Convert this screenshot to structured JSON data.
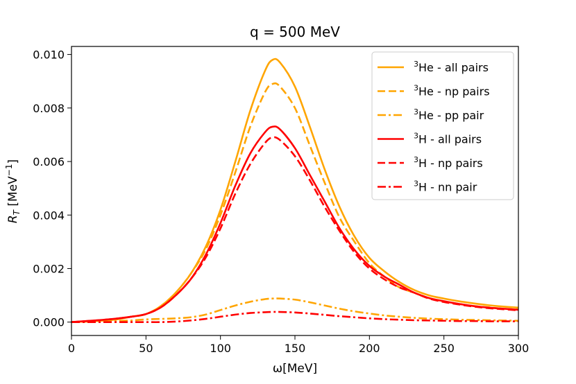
{
  "chart_data": {
    "type": "line",
    "title": "q = 500 MeV",
    "xlabel": "ω[MeV]",
    "ylabel_main": "R",
    "ylabel_sub": "T",
    "ylabel_unit_open": " [MeV",
    "ylabel_unit_exp": "−1",
    "ylabel_unit_close": "]",
    "xlim": [
      0,
      300
    ],
    "ylim": [
      -0.0005,
      0.0103
    ],
    "xticks": [
      0,
      50,
      100,
      150,
      200,
      250,
      300
    ],
    "xtick_labels": [
      "0",
      "50",
      "100",
      "150",
      "200",
      "250",
      "300"
    ],
    "yticks": [
      0,
      0.002,
      0.004,
      0.006,
      0.008,
      0.01
    ],
    "ytick_labels": [
      "0.000",
      "0.002",
      "0.004",
      "0.006",
      "0.008",
      "0.010"
    ],
    "legend_position": "top-right",
    "x": [
      0,
      10,
      20,
      30,
      40,
      50,
      60,
      70,
      80,
      90,
      100,
      110,
      120,
      130,
      135,
      140,
      150,
      160,
      170,
      180,
      190,
      200,
      210,
      220,
      230,
      240,
      250,
      260,
      270,
      280,
      290,
      300
    ],
    "series": [
      {
        "name_sup": "3",
        "name": "He - all pairs",
        "color": "#FFA500",
        "dash": "solid",
        "values": [
          0,
          2e-05,
          5e-05,
          0.0001,
          0.0002,
          0.0003,
          0.0006,
          0.0011,
          0.0018,
          0.0028,
          0.0042,
          0.006,
          0.0079,
          0.0094,
          0.0098,
          0.0097,
          0.0088,
          0.0073,
          0.0057,
          0.0043,
          0.0032,
          0.0024,
          0.0019,
          0.0015,
          0.0012,
          0.001,
          0.00088,
          0.00078,
          0.0007,
          0.00063,
          0.00058,
          0.00054
        ]
      },
      {
        "name_sup": "3",
        "name": "He - np pairs",
        "color": "#FFA500",
        "dash": "dashed",
        "values": [
          0,
          2e-05,
          5e-05,
          0.0001,
          0.0002,
          0.0003,
          0.0006,
          0.0011,
          0.0018,
          0.0027,
          0.004,
          0.0056,
          0.0073,
          0.0086,
          0.0089,
          0.0088,
          0.008,
          0.0066,
          0.0052,
          0.0039,
          0.003,
          0.0022,
          0.0017,
          0.0013,
          0.0011,
          0.0009,
          0.00078,
          0.00068,
          0.0006,
          0.00055,
          0.0005,
          0.00047
        ]
      },
      {
        "name_sup": "3",
        "name": "He - pp pair",
        "color": "#FFA500",
        "dash": "dashdot",
        "values": [
          0,
          1e-05,
          2e-05,
          4e-05,
          6e-05,
          0.0001,
          0.00012,
          0.00014,
          0.00018,
          0.00028,
          0.00045,
          0.00062,
          0.00076,
          0.00086,
          0.00088,
          0.00088,
          0.00084,
          0.00074,
          0.00062,
          0.0005,
          0.0004,
          0.00032,
          0.00025,
          0.0002,
          0.00016,
          0.00013,
          0.00011,
          9e-05,
          8e-05,
          7e-05,
          6e-05,
          5e-05
        ]
      },
      {
        "name_sup": "3",
        "name": "H - all pairs",
        "color": "#FF0000",
        "dash": "solid",
        "values": [
          0,
          4e-05,
          8e-05,
          0.00013,
          0.0002,
          0.0003,
          0.00055,
          0.001,
          0.0016,
          0.0025,
          0.0037,
          0.0051,
          0.0063,
          0.0071,
          0.0073,
          0.0072,
          0.0065,
          0.0055,
          0.0045,
          0.0035,
          0.0027,
          0.0021,
          0.0017,
          0.0014,
          0.0011,
          0.0009,
          0.00078,
          0.00068,
          0.0006,
          0.00054,
          0.0005,
          0.00046
        ]
      },
      {
        "name_sup": "3",
        "name": "H - np pairs",
        "color": "#FF0000",
        "dash": "dashed",
        "values": [
          0,
          4e-05,
          8e-05,
          0.00013,
          0.0002,
          0.0003,
          0.00055,
          0.001,
          0.0016,
          0.0024,
          0.0035,
          0.0048,
          0.0059,
          0.0067,
          0.0069,
          0.0068,
          0.0062,
          0.0053,
          0.0043,
          0.0034,
          0.0026,
          0.002,
          0.0016,
          0.0013,
          0.0011,
          0.00088,
          0.00075,
          0.00066,
          0.00058,
          0.00052,
          0.00048,
          0.00044
        ]
      },
      {
        "name_sup": "3",
        "name": "H - nn pair",
        "color": "#FF0000",
        "dash": "dashdot",
        "values": [
          0,
          0,
          0,
          0,
          0,
          0,
          0,
          2e-05,
          6e-05,
          0.00012,
          0.0002,
          0.00028,
          0.00034,
          0.00037,
          0.00038,
          0.00038,
          0.00036,
          0.00032,
          0.00027,
          0.00022,
          0.00018,
          0.00014,
          0.00011,
          9e-05,
          7e-05,
          6e-05,
          5e-05,
          4e-05,
          4e-05,
          3e-05,
          3e-05,
          3e-05
        ]
      }
    ]
  }
}
